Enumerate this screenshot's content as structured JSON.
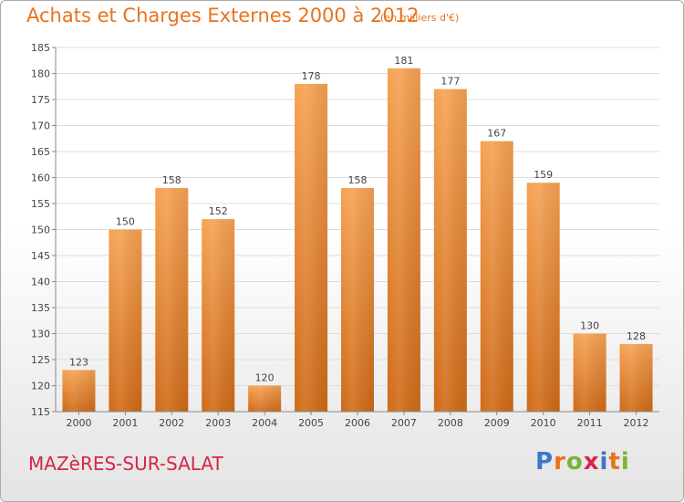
{
  "header": {
    "title": "Achats et Charges Externes 2000 à 2012",
    "subtitle": "(en milliers d'€)"
  },
  "footer": {
    "city": "MAZèRES-SUR-SALAT",
    "logo_text": "Proxiti",
    "logo_colors": [
      "#3a78c9",
      "#e8731c",
      "#7bb33a",
      "#d6264a",
      "#3a78c9",
      "#e8731c",
      "#7bb33a"
    ]
  },
  "chart_data": {
    "type": "bar",
    "title": "Achats et Charges Externes 2000 à 2012",
    "subtitle": "(en milliers d'€)",
    "categories": [
      "2000",
      "2001",
      "2002",
      "2003",
      "2004",
      "2005",
      "2006",
      "2007",
      "2008",
      "2009",
      "2010",
      "2011",
      "2012"
    ],
    "values": [
      123,
      150,
      158,
      152,
      120,
      178,
      158,
      181,
      177,
      167,
      159,
      130,
      128
    ],
    "ylim": [
      115,
      185
    ],
    "yticks": [
      115,
      120,
      125,
      130,
      135,
      140,
      145,
      150,
      155,
      160,
      165,
      170,
      175,
      180,
      185
    ],
    "grid": true,
    "legend": "none",
    "bar_color": "#f0923a",
    "bar_color_dark": "#cf6a17"
  }
}
